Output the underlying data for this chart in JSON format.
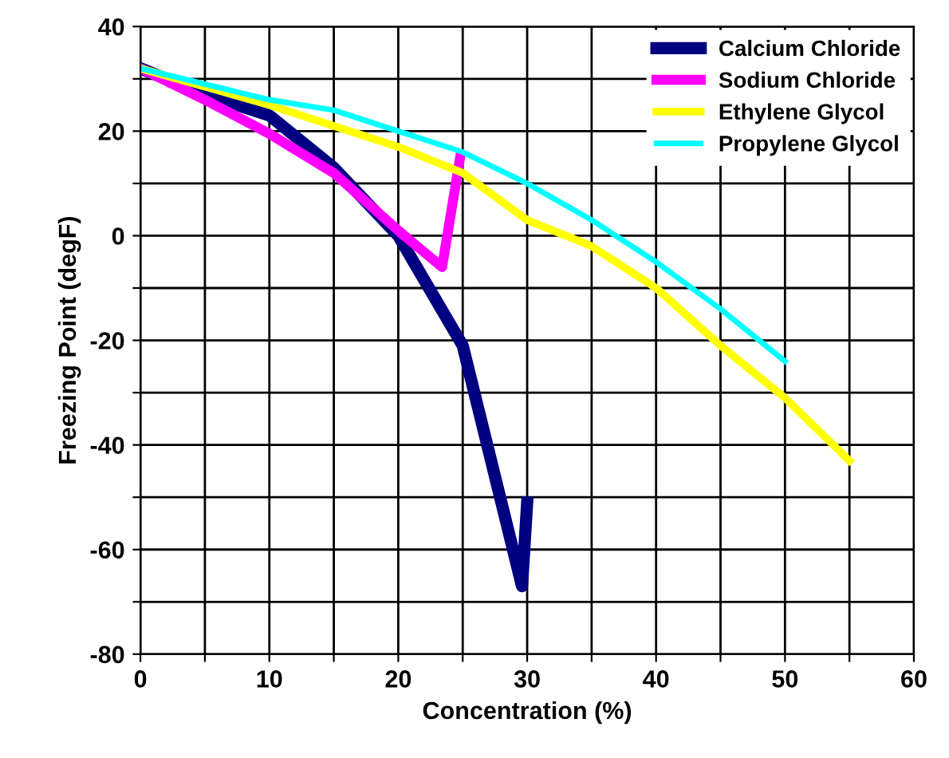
{
  "chart_data": {
    "type": "line",
    "xlabel": "Concentration (%)",
    "ylabel": "Freezing Point (degF)",
    "xlim": [
      0,
      60
    ],
    "ylim": [
      -80,
      40
    ],
    "xticks": [
      0,
      {
        "value": 5,
        "label": null
      },
      10,
      {
        "value": 15,
        "label": null
      },
      20,
      {
        "value": 25,
        "label": null
      },
      30,
      {
        "value": 35,
        "label": null
      },
      40,
      {
        "value": 45,
        "label": null
      },
      50,
      {
        "value": 55,
        "label": null
      },
      60
    ],
    "yticks": [
      -80,
      {
        "value": -70,
        "label": null
      },
      -60,
      {
        "value": -50,
        "label": null
      },
      -40,
      {
        "value": -30,
        "label": null
      },
      -20,
      {
        "value": -10,
        "label": null
      },
      0,
      {
        "value": 10,
        "label": null
      },
      20,
      {
        "value": 30,
        "label": null
      },
      40
    ],
    "grid": true,
    "legend": "top right",
    "series": [
      {
        "name": "Calcium Chloride",
        "color": "#000080",
        "x": [
          0,
          5,
          10,
          15,
          20,
          25,
          29.6,
          30
        ],
        "values": [
          32,
          27,
          23,
          13,
          0,
          -21,
          -67,
          -51
        ]
      },
      {
        "name": "Sodium Chloride",
        "color": "#ff00ff",
        "x": [
          0,
          5,
          10,
          15,
          20,
          23.4,
          24.8
        ],
        "values": [
          32,
          26,
          19.5,
          12,
          1,
          -6,
          15
        ]
      },
      {
        "name": "Ethylene Glycol",
        "color": "#ffff00",
        "x": [
          0,
          10,
          20,
          25,
          30,
          35,
          40,
          45,
          50,
          55
        ],
        "values": [
          32,
          25,
          17,
          12,
          3,
          -2,
          -10,
          -21,
          -31,
          -43
        ]
      },
      {
        "name": "Propylene Glycol",
        "color": "#00ffff",
        "x": [
          0,
          10,
          15,
          20,
          25,
          30,
          35,
          40,
          45,
          50
        ],
        "values": [
          32,
          26,
          24,
          20,
          16,
          10,
          3,
          -5,
          -14,
          -24
        ]
      }
    ]
  }
}
